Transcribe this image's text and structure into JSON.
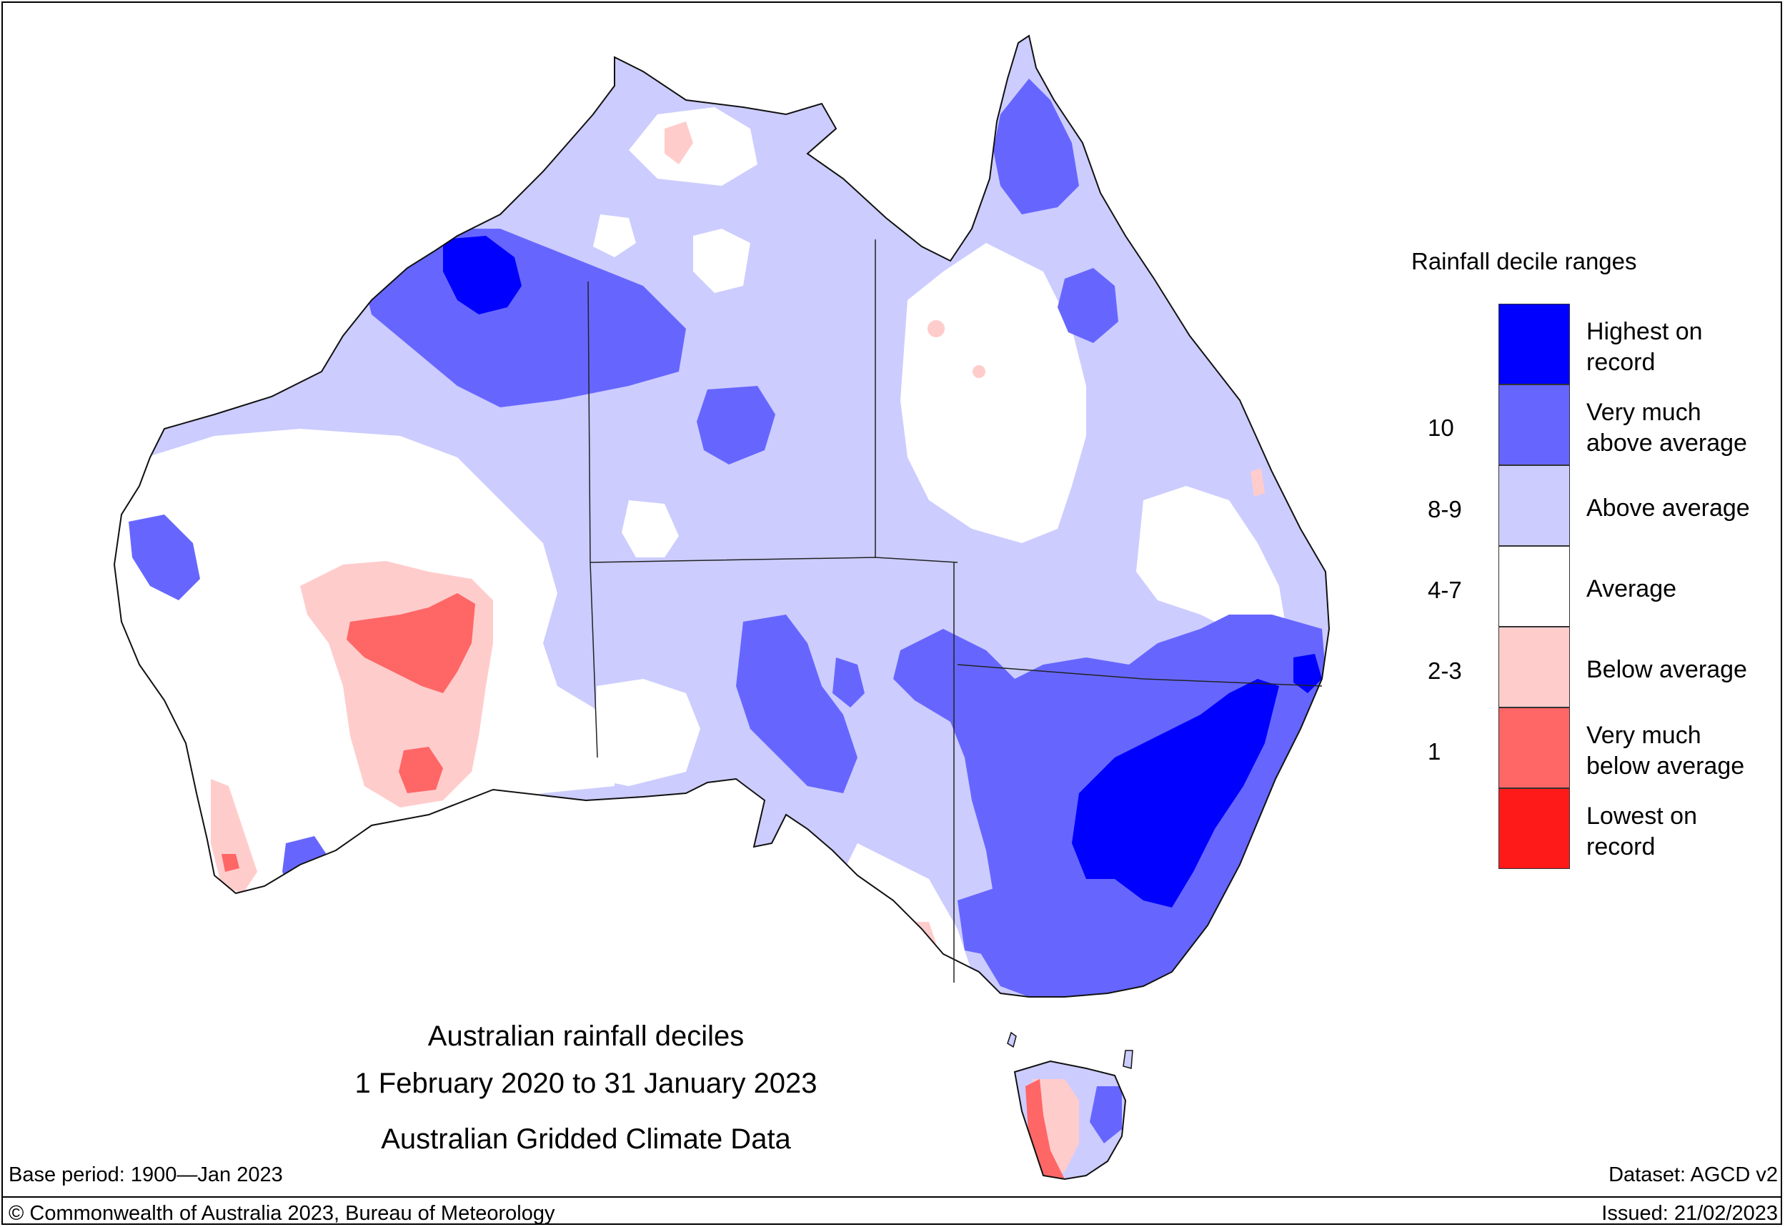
{
  "map": {
    "title_lines": [
      "Australian rainfall deciles",
      "1 February 2020 to 31 January 2023",
      "Australian Gridded Climate Data"
    ],
    "base_period": "Base period: 1900—Jan 2023",
    "dataset": "Dataset: AGCD v2",
    "copyright": "© Commonwealth of Australia 2023, Bureau of Meteorology",
    "issued": "Issued: 21/02/2023"
  },
  "legend": {
    "title": "Rainfall decile ranges",
    "categories": [
      {
        "label_line1": "Highest on",
        "label_line2": "record",
        "color": "#0000ff"
      },
      {
        "label_line1": "Very much",
        "label_line2": "above average",
        "color": "#6666ff"
      },
      {
        "label_line1": "Above average",
        "label_line2": "",
        "color": "#ccccff"
      },
      {
        "label_line1": "Average",
        "label_line2": "",
        "color": "#ffffff"
      },
      {
        "label_line1": "Below average",
        "label_line2": "",
        "color": "#ffcccc"
      },
      {
        "label_line1": "Very much",
        "label_line2": "below average",
        "color": "#ff6666"
      },
      {
        "label_line1": "Lowest on",
        "label_line2": "record",
        "color": "#ff1a1a"
      }
    ],
    "boundaries": [
      "10",
      "8-9",
      "4-7",
      "2-3",
      "1"
    ]
  }
}
